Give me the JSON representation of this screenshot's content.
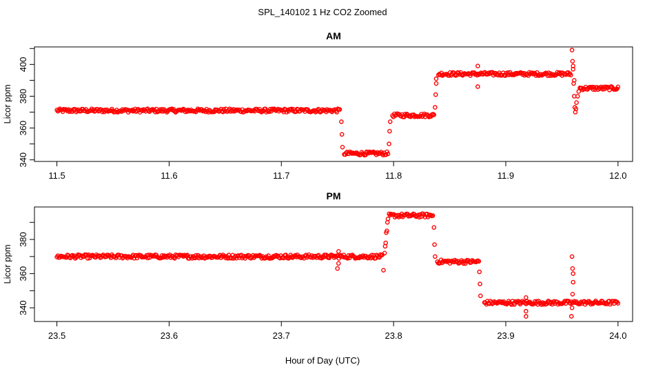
{
  "figure": {
    "title": "SPL_140102  1 Hz CO2 Zoomed",
    "xlabel": "Hour of Day (UTC)",
    "marker_color": "#ff0000"
  },
  "chart_data": [
    {
      "type": "scatter",
      "title": "AM",
      "ylabel": "Licor ppm",
      "xlim": [
        11.48,
        12.013
      ],
      "ylim": [
        339,
        411
      ],
      "xticks": [
        "11.5",
        "11.6",
        "11.7",
        "11.8",
        "11.9",
        "12.0"
      ],
      "yticks": [
        "340",
        "360",
        "380",
        "400"
      ],
      "series": [
        {
          "color": "#ff0000",
          "segments": [
            {
              "x": [
                11.5,
                11.752
              ],
              "y": 371
            },
            {
              "x": [
                11.756,
                11.795
              ],
              "y": 344
            },
            {
              "x": [
                11.799,
                11.836
              ],
              "y": 368
            },
            {
              "x": [
                11.84,
                11.958
              ],
              "y": 394
            },
            {
              "x": [
                11.966,
                12.0
              ],
              "y": 385
            }
          ],
          "points": [
            {
              "x": 11.7535,
              "y": 364
            },
            {
              "x": 11.754,
              "y": 356
            },
            {
              "x": 11.7545,
              "y": 348
            },
            {
              "x": 11.796,
              "y": 350
            },
            {
              "x": 11.7965,
              "y": 358
            },
            {
              "x": 11.797,
              "y": 364
            },
            {
              "x": 11.837,
              "y": 373
            },
            {
              "x": 11.8375,
              "y": 381
            },
            {
              "x": 11.838,
              "y": 388
            },
            {
              "x": 11.838,
              "y": 391
            },
            {
              "x": 11.875,
              "y": 399
            },
            {
              "x": 11.875,
              "y": 386
            },
            {
              "x": 11.959,
              "y": 409
            },
            {
              "x": 11.9595,
              "y": 402
            },
            {
              "x": 11.96,
              "y": 399
            },
            {
              "x": 11.96,
              "y": 397
            },
            {
              "x": 11.961,
              "y": 390
            },
            {
              "x": 11.9605,
              "y": 388
            },
            {
              "x": 11.961,
              "y": 380
            },
            {
              "x": 11.9615,
              "y": 373
            },
            {
              "x": 11.962,
              "y": 370
            },
            {
              "x": 11.9625,
              "y": 372
            },
            {
              "x": 11.963,
              "y": 376
            },
            {
              "x": 11.964,
              "y": 380
            },
            {
              "x": 11.965,
              "y": 383
            }
          ]
        }
      ]
    },
    {
      "type": "scatter",
      "title": "PM",
      "ylabel": "Licor ppm",
      "xlim": [
        23.48,
        24.013
      ],
      "ylim": [
        332,
        399
      ],
      "xticks": [
        "23.5",
        "23.6",
        "23.7",
        "23.8",
        "23.9",
        "24.0"
      ],
      "yticks": [
        "340",
        "360",
        "380"
      ],
      "series": [
        {
          "color": "#ff0000",
          "segments": [
            {
              "x": [
                23.5,
                23.79
              ],
              "y": 370
            },
            {
              "x": [
                23.796,
                23.835
              ],
              "y": 394
            },
            {
              "x": [
                23.839,
                23.876
              ],
              "y": 367
            },
            {
              "x": [
                23.881,
                24.0
              ],
              "y": 343
            }
          ],
          "points": [
            {
              "x": 23.751,
              "y": 373
            },
            {
              "x": 23.751,
              "y": 366
            },
            {
              "x": 23.75,
              "y": 363
            },
            {
              "x": 23.791,
              "y": 362
            },
            {
              "x": 23.792,
              "y": 372
            },
            {
              "x": 23.7925,
              "y": 376
            },
            {
              "x": 23.793,
              "y": 378
            },
            {
              "x": 23.7935,
              "y": 384
            },
            {
              "x": 23.794,
              "y": 385
            },
            {
              "x": 23.7945,
              "y": 390
            },
            {
              "x": 23.795,
              "y": 392
            },
            {
              "x": 23.836,
              "y": 387
            },
            {
              "x": 23.8365,
              "y": 377
            },
            {
              "x": 23.837,
              "y": 370
            },
            {
              "x": 23.8765,
              "y": 361
            },
            {
              "x": 23.877,
              "y": 354
            },
            {
              "x": 23.8775,
              "y": 347
            },
            {
              "x": 23.918,
              "y": 346
            },
            {
              "x": 23.918,
              "y": 338
            },
            {
              "x": 23.918,
              "y": 335
            },
            {
              "x": 23.959,
              "y": 370
            },
            {
              "x": 23.9595,
              "y": 363
            },
            {
              "x": 23.96,
              "y": 360
            },
            {
              "x": 23.96,
              "y": 355
            },
            {
              "x": 23.9595,
              "y": 348
            },
            {
              "x": 23.959,
              "y": 340
            },
            {
              "x": 23.9585,
              "y": 335
            }
          ]
        }
      ]
    }
  ]
}
